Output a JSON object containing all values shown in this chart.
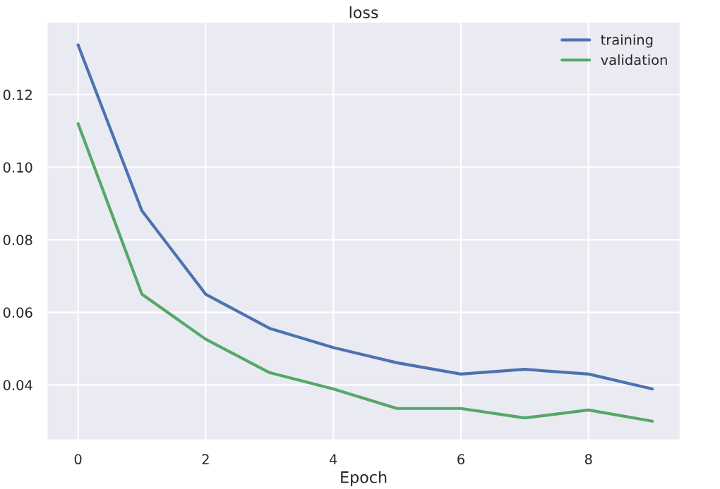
{
  "chart_data": {
    "type": "line",
    "title": "loss",
    "xlabel": "Epoch",
    "x": [
      0,
      1,
      2,
      3,
      4,
      5,
      6,
      7,
      8,
      9
    ],
    "series": [
      {
        "name": "training",
        "color": "#4c72b0",
        "values": [
          0.1337,
          0.088,
          0.065,
          0.0556,
          0.0503,
          0.0461,
          0.043,
          0.0443,
          0.043,
          0.0389
        ]
      },
      {
        "name": "validation",
        "color": "#55a868",
        "values": [
          0.112,
          0.065,
          0.0526,
          0.0434,
          0.0389,
          0.0335,
          0.0335,
          0.0309,
          0.0331,
          0.03
        ]
      }
    ],
    "xlim": [
      -0.49,
      9.44
    ],
    "ylim": [
      0.0248,
      0.14
    ],
    "xticks": [
      0,
      2,
      4,
      6,
      8
    ],
    "yticks": [
      {
        "value": 0.04,
        "label": "0.04"
      },
      {
        "value": 0.06,
        "label": "0.06"
      },
      {
        "value": 0.08,
        "label": "0.08"
      },
      {
        "value": 0.1,
        "label": "0.10"
      },
      {
        "value": 0.12,
        "label": "0.12"
      }
    ],
    "grid": true,
    "legend": "top right"
  }
}
